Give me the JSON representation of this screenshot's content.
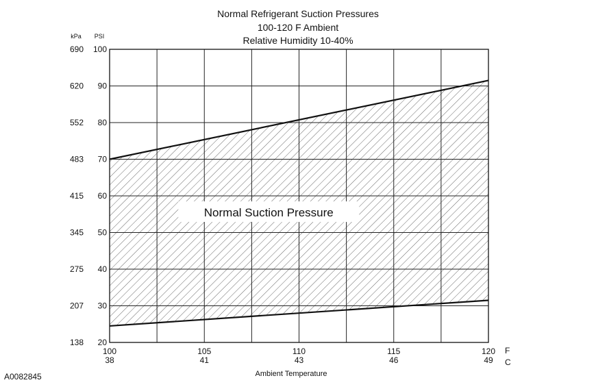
{
  "chart_data": {
    "type": "area",
    "title_lines": [
      "Normal  Refrigerant  Suction  Pressures",
      "100-120 F Ambient",
      "Relative Humidity 10-40%"
    ],
    "xlabel": "Ambient Temperature",
    "x_unit_labels": [
      "F",
      "C"
    ],
    "xlim": [
      100,
      120
    ],
    "x_ticks": [
      {
        "f": "100",
        "c": "38"
      },
      {
        "f": "105",
        "c": "41"
      },
      {
        "f": "110",
        "c": "43"
      },
      {
        "f": "115",
        "c": "46"
      },
      {
        "f": "120",
        "c": "49"
      }
    ],
    "x_grid_step": 2.5,
    "y_units": [
      "kPa",
      "PSI"
    ],
    "ylim": [
      20,
      100
    ],
    "y_ticks": [
      {
        "psi": "100",
        "kpa": "690"
      },
      {
        "psi": "90",
        "kpa": "620"
      },
      {
        "psi": "80",
        "kpa": "552"
      },
      {
        "psi": "70",
        "kpa": "483"
      },
      {
        "psi": "60",
        "kpa": "415"
      },
      {
        "psi": "50",
        "kpa": "345"
      },
      {
        "psi": "40",
        "kpa": "275"
      },
      {
        "psi": "30",
        "kpa": "207"
      },
      {
        "psi": "20",
        "kpa": "138"
      }
    ],
    "grid": true,
    "series": [
      {
        "x": [
          100,
          120
        ],
        "values": [
          70,
          91.5
        ]
      },
      {
        "x": [
          100,
          120
        ],
        "values": [
          24.5,
          31.5
        ]
      }
    ],
    "region_label": "Normal Suction Pressure"
  },
  "figure_id": "A0082845"
}
